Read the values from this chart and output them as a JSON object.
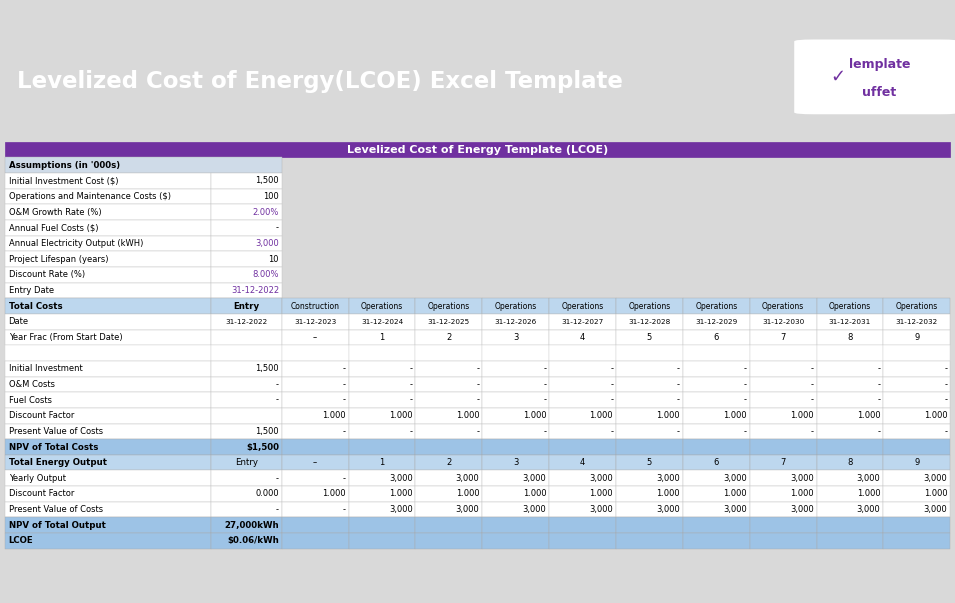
{
  "title": "Levelized Cost of Energy(LCOE) Excel Template",
  "subtitle": "Levelized Cost of Energy Template (LCOE)",
  "header_bg": "#7030A0",
  "header_fg": "#FFFFFF",
  "page_bg": "#D9D9D9",
  "table_bg": "#FFFFFF",
  "purple_accent": "#7030A0",
  "blue_header_bg": "#BDD7EE",
  "highlight_bg": "#9DC3E6",
  "assumptions": [
    [
      "Assumptions (in '000s)",
      "",
      "bold_blue"
    ],
    [
      "Initial Investment Cost ($)",
      "1,500",
      "normal"
    ],
    [
      "Operations and Maintenance Costs ($)",
      "100",
      "normal"
    ],
    [
      "O&M Growth Rate (%)",
      "2.00%",
      "purple"
    ],
    [
      "Annual Fuel Costs ($)",
      "-",
      "normal"
    ],
    [
      "Annual Electricity Output (kWH)",
      "3,000",
      "purple"
    ],
    [
      "Project Lifespan (years)",
      "10",
      "normal"
    ],
    [
      "Discount Rate (%)",
      "8.00%",
      "purple"
    ],
    [
      "Entry Date",
      "31-12-2022",
      "purple"
    ]
  ],
  "dates": [
    "31-12-2022",
    "31-12-2023",
    "31-12-2024",
    "31-12-2025",
    "31-12-2026",
    "31-12-2027",
    "31-12-2028",
    "31-12-2029",
    "31-12-2030",
    "31-12-2031",
    "31-12-2032"
  ],
  "year_frac": [
    "",
    "–",
    "1",
    "2",
    "3",
    "4",
    "5",
    "6",
    "7",
    "8",
    "9"
  ],
  "costs_rows": [
    [
      "Initial Investment",
      "1,500",
      "-",
      "-",
      "-",
      "-",
      "-",
      "-",
      "-",
      "-",
      "-",
      "-"
    ],
    [
      "O&M Costs",
      "-",
      "-",
      "-",
      "-",
      "-",
      "-",
      "-",
      "-",
      "-",
      "-",
      "-"
    ],
    [
      "Fuel Costs",
      "-",
      "-",
      "-",
      "-",
      "-",
      "-",
      "-",
      "-",
      "-",
      "-",
      "-"
    ],
    [
      "Discount Factor",
      "",
      "1.000",
      "1.000",
      "1.000",
      "1.000",
      "1.000",
      "1.000",
      "1.000",
      "1.000",
      "1.000",
      "1.000"
    ],
    [
      "Present Value of Costs",
      "1,500",
      "-",
      "-",
      "-",
      "-",
      "-",
      "-",
      "-",
      "-",
      "-",
      "-"
    ]
  ],
  "npv_costs": [
    "NPV of Total Costs",
    "$1,500"
  ],
  "energy_header_vals": [
    "–",
    "1",
    "2",
    "3",
    "4",
    "5",
    "6",
    "7",
    "8",
    "9"
  ],
  "energy_rows": [
    [
      "Yearly Output",
      "-",
      "-",
      "3,000",
      "3,000",
      "3,000",
      "3,000",
      "3,000",
      "3,000",
      "3,000",
      "3,000",
      "3,000"
    ],
    [
      "Discount Factor",
      "0.000",
      "1.000",
      "1.000",
      "1.000",
      "1.000",
      "1.000",
      "1.000",
      "1.000",
      "1.000",
      "1.000",
      "1.000"
    ],
    [
      "Present Value of Costs",
      "-",
      "-",
      "3,000",
      "3,000",
      "3,000",
      "3,000",
      "3,000",
      "3,000",
      "3,000",
      "3,000",
      "3,000"
    ]
  ],
  "npv_output": [
    "NPV of Total Output",
    "27,000kWh"
  ],
  "lcoe": [
    "LCOE",
    "$0.06/kWh"
  ],
  "col_ops": [
    "Construction",
    "Operations",
    "Operations",
    "Operations",
    "Operations",
    "Operations",
    "Operations",
    "Operations",
    "Operations",
    "Operations"
  ]
}
